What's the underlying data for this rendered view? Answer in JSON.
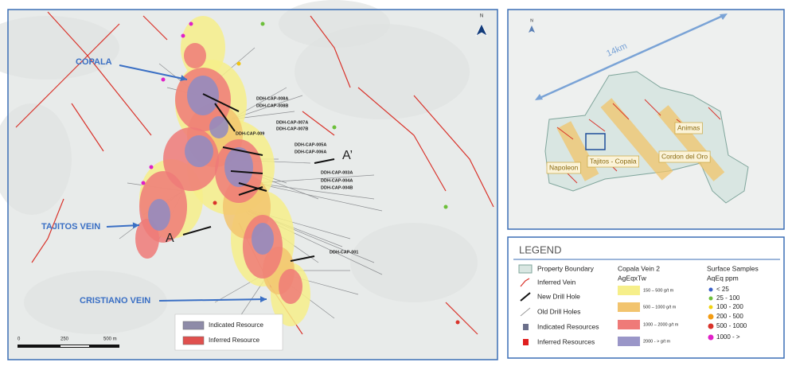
{
  "main_map": {
    "callouts": [
      "COPALA",
      "TAJITOS VEIN",
      "CRISTIANO VEIN"
    ],
    "section_labels": [
      "A",
      "A’"
    ],
    "drill_holes": [
      "DDH-CAP-008A",
      "DDH-CAP-008B",
      "DDH-CAP-007A",
      "DDH-CAP-007B",
      "DDH-CAP-009",
      "DDH-CAP-005A",
      "DDH-CAP-006A",
      "DDH-CAP-003A",
      "DDH-CAP-004A",
      "DDH-CAP-004B",
      "DDH-CAP-001"
    ],
    "resource_key": [
      "Indicated Resource",
      "Inferred Resource"
    ],
    "scale_bar": [
      "0",
      "250",
      "500 m"
    ],
    "north": "N"
  },
  "location_map": {
    "distance": "14km",
    "areas": [
      "Napoleon",
      "Tajitos - Copala",
      "Cordon del Oro",
      "Animas"
    ],
    "north": "N"
  },
  "legend": {
    "title": "LEGEND",
    "symbols": [
      "Property Boundary",
      "Inferred Vein",
      "New Drill Hole",
      "Old Drill Holes",
      "Indicated Resources",
      "Inferred Resources"
    ],
    "vein_title": [
      "Copala Vein 2",
      "AgEqxTw"
    ],
    "vein_classes": [
      "150 – 500 g/t m",
      "500 – 1000 g/t m",
      "1000 – 2000 g/t m",
      "2000 - > g/t m"
    ],
    "samples_title": [
      "Surface Samples",
      "AqEq ppm"
    ],
    "sample_classes": [
      "< 25",
      "25 - 100",
      "100 - 200",
      "200 - 500",
      "500 - 1000",
      "1000 - >"
    ]
  }
}
